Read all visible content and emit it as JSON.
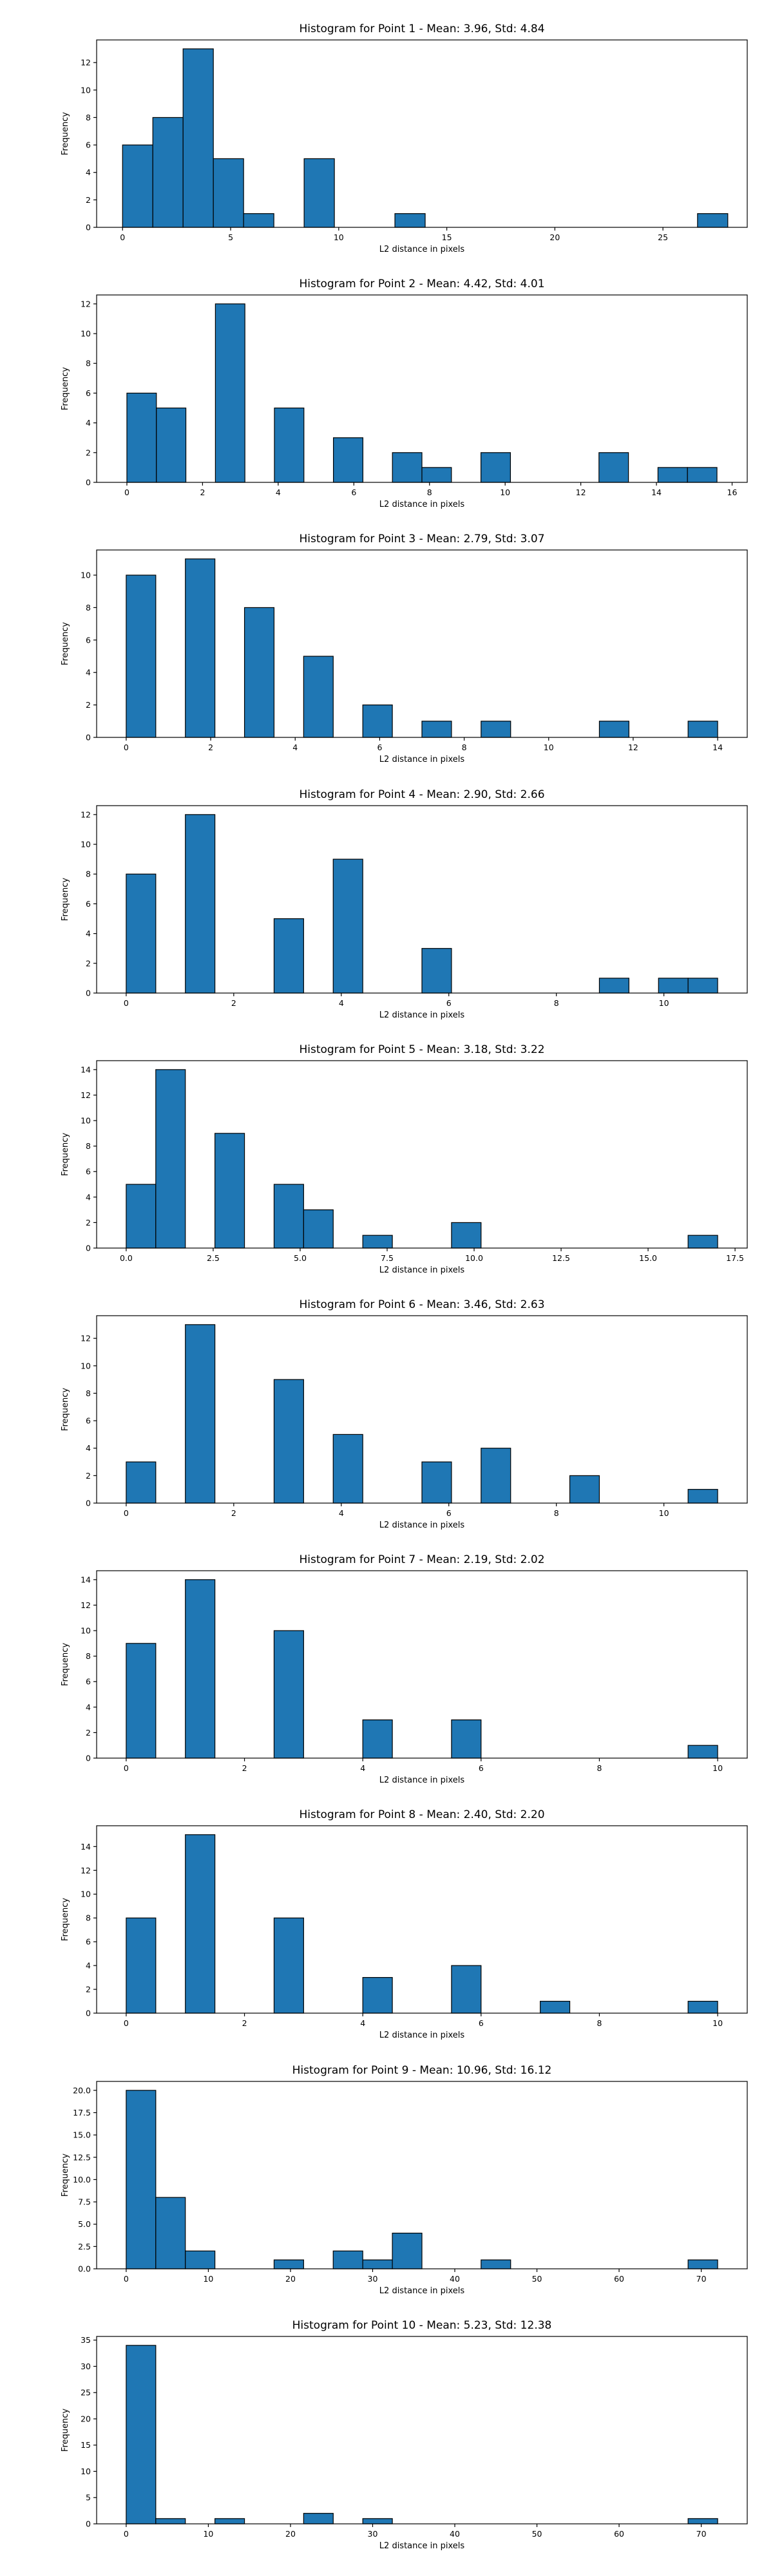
{
  "chart_data": [
    {
      "type": "bar",
      "title": "Histogram for Point 1 - Mean: 3.96, Std: 4.84",
      "xlabel": "L2 distance in pixels",
      "ylabel": "Frequency",
      "xlim": [
        -1.2,
        28.9
      ],
      "ylim": [
        0,
        13.65
      ],
      "xticks": [
        0,
        5,
        10,
        15,
        20,
        25
      ],
      "xtick_labels": [
        "0",
        "5",
        "10",
        "15",
        "20",
        "25"
      ],
      "yticks": [
        0,
        2,
        4,
        6,
        8,
        10,
        12
      ],
      "ytick_labels": [
        "0",
        "2",
        "4",
        "6",
        "8",
        "10",
        "12"
      ],
      "bin_width": 1.4,
      "bin_starts": [
        0,
        1.4,
        2.8,
        4.2,
        5.6,
        8.4,
        12.6,
        26.6
      ],
      "values": [
        6,
        8,
        13,
        5,
        1,
        5,
        1,
        1
      ]
    },
    {
      "type": "bar",
      "title": "Histogram for Point 2 - Mean: 4.42, Std: 4.01",
      "xlabel": "L2 distance in pixels",
      "ylabel": "Frequency",
      "xlim": [
        -0.8,
        16.4
      ],
      "ylim": [
        0,
        12.6
      ],
      "xticks": [
        0,
        2,
        4,
        6,
        8,
        10,
        12,
        14,
        16
      ],
      "xtick_labels": [
        "0",
        "2",
        "4",
        "6",
        "8",
        "10",
        "12",
        "14",
        "16"
      ],
      "yticks": [
        0,
        2,
        4,
        6,
        8,
        10,
        12
      ],
      "ytick_labels": [
        "0",
        "2",
        "4",
        "6",
        "8",
        "10",
        "12"
      ],
      "bin_width": 0.78,
      "bin_starts": [
        0,
        0.78,
        2.34,
        3.9,
        5.46,
        7.02,
        7.8,
        9.36,
        12.48,
        14.04,
        14.82
      ],
      "values": [
        6,
        5,
        12,
        5,
        3,
        2,
        1,
        2,
        2,
        1,
        1
      ]
    },
    {
      "type": "bar",
      "title": "Histogram for Point 3 - Mean: 2.79, Std: 3.07",
      "xlabel": "L2 distance in pixels",
      "ylabel": "Frequency",
      "xlim": [
        -0.7,
        14.7
      ],
      "ylim": [
        0,
        11.55
      ],
      "xticks": [
        0,
        2,
        4,
        6,
        8,
        10,
        12,
        14
      ],
      "xtick_labels": [
        "0",
        "2",
        "4",
        "6",
        "8",
        "10",
        "12",
        "14"
      ],
      "yticks": [
        0,
        2,
        4,
        6,
        8,
        10
      ],
      "ytick_labels": [
        "0",
        "2",
        "4",
        "6",
        "8",
        "10"
      ],
      "bin_width": 0.7,
      "bin_starts": [
        0,
        1.4,
        2.8,
        4.2,
        5.6,
        7.0,
        8.4,
        11.2,
        13.3
      ],
      "values": [
        10,
        11,
        8,
        5,
        2,
        1,
        1,
        1,
        1
      ]
    },
    {
      "type": "bar",
      "title": "Histogram for Point 4 - Mean: 2.90, Std: 2.66",
      "xlabel": "L2 distance in pixels",
      "ylabel": "Frequency",
      "xlim": [
        -0.55,
        11.55
      ],
      "ylim": [
        0,
        12.6
      ],
      "xticks": [
        0,
        2,
        4,
        6,
        8,
        10
      ],
      "xtick_labels": [
        "0",
        "2",
        "4",
        "6",
        "8",
        "10"
      ],
      "yticks": [
        0,
        2,
        4,
        6,
        8,
        10,
        12
      ],
      "ytick_labels": [
        "0",
        "2",
        "4",
        "6",
        "8",
        "10",
        "12"
      ],
      "bin_width": 0.55,
      "bin_starts": [
        0,
        1.1,
        2.75,
        3.85,
        5.5,
        8.8,
        9.9,
        10.45
      ],
      "values": [
        8,
        12,
        5,
        9,
        3,
        1,
        1,
        1
      ]
    },
    {
      "type": "bar",
      "title": "Histogram for Point 5 - Mean: 3.18, Std: 3.22",
      "xlabel": "L2 distance in pixels",
      "ylabel": "Frequency",
      "xlim": [
        -0.85,
        17.85
      ],
      "ylim": [
        0,
        14.7
      ],
      "xticks": [
        0,
        2.5,
        5,
        7.5,
        10,
        12.5,
        15,
        17.5
      ],
      "xtick_labels": [
        "0.0",
        "2.5",
        "5.0",
        "7.5",
        "10.0",
        "12.5",
        "15.0",
        "17.5"
      ],
      "yticks": [
        0,
        2,
        4,
        6,
        8,
        10,
        12,
        14
      ],
      "ytick_labels": [
        "0",
        "2",
        "4",
        "6",
        "8",
        "10",
        "12",
        "14"
      ],
      "bin_width": 0.85,
      "bin_starts": [
        0,
        0.85,
        2.55,
        4.25,
        5.1,
        6.8,
        9.35,
        16.15
      ],
      "values": [
        5,
        14,
        9,
        5,
        3,
        1,
        2,
        1
      ]
    },
    {
      "type": "bar",
      "title": "Histogram for Point 6 - Mean: 3.46, Std: 2.63",
      "xlabel": "L2 distance in pixels",
      "ylabel": "Frequency",
      "xlim": [
        -0.55,
        11.55
      ],
      "ylim": [
        0,
        13.65
      ],
      "xticks": [
        0,
        2,
        4,
        6,
        8,
        10
      ],
      "xtick_labels": [
        "0",
        "2",
        "4",
        "6",
        "8",
        "10"
      ],
      "yticks": [
        0,
        2,
        4,
        6,
        8,
        10,
        12
      ],
      "ytick_labels": [
        "0",
        "2",
        "4",
        "6",
        "8",
        "10",
        "12"
      ],
      "bin_width": 0.55,
      "bin_starts": [
        0,
        1.1,
        2.75,
        3.85,
        5.5,
        6.6,
        8.25,
        10.45
      ],
      "values": [
        3,
        13,
        9,
        5,
        3,
        4,
        2,
        1
      ]
    },
    {
      "type": "bar",
      "title": "Histogram for Point 7 - Mean: 2.19, Std: 2.02",
      "xlabel": "L2 distance in pixels",
      "ylabel": "Frequency",
      "xlim": [
        -0.5,
        10.5
      ],
      "ylim": [
        0,
        14.7
      ],
      "xticks": [
        0,
        2,
        4,
        6,
        8,
        10
      ],
      "xtick_labels": [
        "0",
        "2",
        "4",
        "6",
        "8",
        "10"
      ],
      "yticks": [
        0,
        2,
        4,
        6,
        8,
        10,
        12,
        14
      ],
      "ytick_labels": [
        "0",
        "2",
        "4",
        "6",
        "8",
        "10",
        "12",
        "14"
      ],
      "bin_width": 0.5,
      "bin_starts": [
        0,
        1.0,
        2.5,
        4.0,
        5.5,
        9.5
      ],
      "values": [
        9,
        14,
        10,
        3,
        3,
        1
      ]
    },
    {
      "type": "bar",
      "title": "Histogram for Point 8 - Mean: 2.40, Std: 2.20",
      "xlabel": "L2 distance in pixels",
      "ylabel": "Frequency",
      "xlim": [
        -0.5,
        10.5
      ],
      "ylim": [
        0,
        15.75
      ],
      "xticks": [
        0,
        2,
        4,
        6,
        8,
        10
      ],
      "xtick_labels": [
        "0",
        "2",
        "4",
        "6",
        "8",
        "10"
      ],
      "yticks": [
        0,
        2,
        4,
        6,
        8,
        10,
        12,
        14
      ],
      "ytick_labels": [
        "0",
        "2",
        "4",
        "6",
        "8",
        "10",
        "12",
        "14"
      ],
      "bin_width": 0.5,
      "bin_starts": [
        0,
        1.0,
        2.5,
        4.0,
        5.5,
        7.0,
        9.5
      ],
      "values": [
        8,
        15,
        8,
        3,
        4,
        1,
        1
      ]
    },
    {
      "type": "bar",
      "title": "Histogram for Point 9 - Mean: 10.96, Std: 16.12",
      "xlabel": "L2 distance in pixels",
      "ylabel": "Frequency",
      "xlim": [
        -3.6,
        75.6
      ],
      "ylim": [
        0,
        21
      ],
      "xticks": [
        0,
        10,
        20,
        30,
        40,
        50,
        60,
        70
      ],
      "xtick_labels": [
        "0",
        "10",
        "20",
        "30",
        "40",
        "50",
        "60",
        "70"
      ],
      "yticks": [
        0,
        2.5,
        5,
        7.5,
        10,
        12.5,
        15,
        17.5,
        20
      ],
      "ytick_labels": [
        "0.0",
        "2.5",
        "5.0",
        "7.5",
        "10.0",
        "12.5",
        "15.0",
        "17.5",
        "20.0"
      ],
      "bin_width": 3.6,
      "bin_starts": [
        0,
        3.6,
        7.2,
        18.0,
        25.2,
        28.8,
        32.4,
        43.2,
        68.4
      ],
      "values": [
        20,
        8,
        2,
        1,
        2,
        1,
        4,
        1,
        1
      ]
    },
    {
      "type": "bar",
      "title": "Histogram for Point 10 - Mean: 5.23, Std: 12.38",
      "xlabel": "L2 distance in pixels",
      "ylabel": "Frequency",
      "xlim": [
        -3.6,
        75.6
      ],
      "ylim": [
        0,
        35.7
      ],
      "xticks": [
        0,
        10,
        20,
        30,
        40,
        50,
        60,
        70
      ],
      "xtick_labels": [
        "0",
        "10",
        "20",
        "30",
        "40",
        "50",
        "60",
        "70"
      ],
      "yticks": [
        0,
        5,
        10,
        15,
        20,
        25,
        30,
        35
      ],
      "ytick_labels": [
        "0",
        "5",
        "10",
        "15",
        "20",
        "25",
        "30",
        "35"
      ],
      "bin_width": 3.6,
      "bin_starts": [
        0,
        3.6,
        10.8,
        21.6,
        28.8,
        68.4
      ],
      "values": [
        34,
        1,
        1,
        2,
        1,
        1
      ]
    }
  ]
}
